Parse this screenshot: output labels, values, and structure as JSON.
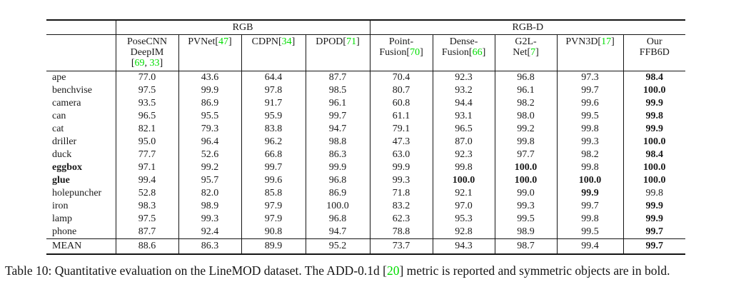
{
  "page": {
    "caption": "Table 10: Quantitative evaluation on the LineMOD dataset. The ADD-0.1d [|20|] metric is reported and symmetric objects are in bold."
  },
  "colors": {
    "citation_green": "#00DD00",
    "text": "#1a1a1a"
  },
  "table": {
    "groups": [
      {
        "label": "RGB",
        "span": 4
      },
      {
        "label": "RGB-D",
        "span": 5
      }
    ],
    "methods": [
      {
        "name": "posecnn-deepim",
        "lines": [
          "PoseCNN",
          "DeepIM",
          "[|69|, |33|]"
        ]
      },
      {
        "name": "pvnet",
        "lines": [
          "PVNet[|47|]"
        ]
      },
      {
        "name": "cdpn",
        "lines": [
          "CDPN[|34|]"
        ]
      },
      {
        "name": "dpod",
        "lines": [
          "DPOD[|71|]"
        ]
      },
      {
        "name": "pointfusion",
        "lines": [
          "Point-",
          "Fusion[|70|]"
        ]
      },
      {
        "name": "densefusion",
        "lines": [
          "Dense-",
          "Fusion[|66|]"
        ]
      },
      {
        "name": "g2l-net",
        "lines": [
          "G2L-",
          "Net[|7|]"
        ]
      },
      {
        "name": "pvn3d",
        "lines": [
          "PVN3D[|17|]"
        ]
      },
      {
        "name": "our-ffb6d",
        "lines": [
          "Our",
          "FFB6D"
        ]
      }
    ],
    "rows": [
      {
        "object": "ape",
        "bold_object": false,
        "values": [
          "77.0",
          "43.6",
          "64.4",
          "87.7",
          "70.4",
          "92.3",
          "96.8",
          "97.3",
          "98.4"
        ],
        "bold_cols": [
          8
        ]
      },
      {
        "object": "benchvise",
        "bold_object": false,
        "values": [
          "97.5",
          "99.9",
          "97.8",
          "98.5",
          "80.7",
          "93.2",
          "96.1",
          "99.7",
          "100.0"
        ],
        "bold_cols": [
          8
        ]
      },
      {
        "object": "camera",
        "bold_object": false,
        "values": [
          "93.5",
          "86.9",
          "91.7",
          "96.1",
          "60.8",
          "94.4",
          "98.2",
          "99.6",
          "99.9"
        ],
        "bold_cols": [
          8
        ]
      },
      {
        "object": "can",
        "bold_object": false,
        "values": [
          "96.5",
          "95.5",
          "95.9",
          "99.7",
          "61.1",
          "93.1",
          "98.0",
          "99.5",
          "99.8"
        ],
        "bold_cols": [
          8
        ]
      },
      {
        "object": "cat",
        "bold_object": false,
        "values": [
          "82.1",
          "79.3",
          "83.8",
          "94.7",
          "79.1",
          "96.5",
          "99.2",
          "99.8",
          "99.9"
        ],
        "bold_cols": [
          8
        ]
      },
      {
        "object": "driller",
        "bold_object": false,
        "values": [
          "95.0",
          "96.4",
          "96.2",
          "98.8",
          "47.3",
          "87.0",
          "99.8",
          "99.3",
          "100.0"
        ],
        "bold_cols": [
          8
        ]
      },
      {
        "object": "duck",
        "bold_object": false,
        "values": [
          "77.7",
          "52.6",
          "66.8",
          "86.3",
          "63.0",
          "92.3",
          "97.7",
          "98.2",
          "98.4"
        ],
        "bold_cols": [
          8
        ]
      },
      {
        "object": "eggbox",
        "bold_object": true,
        "values": [
          "97.1",
          "99.2",
          "99.7",
          "99.9",
          "99.9",
          "99.8",
          "100.0",
          "99.8",
          "100.0"
        ],
        "bold_cols": [
          6,
          8
        ]
      },
      {
        "object": "glue",
        "bold_object": true,
        "values": [
          "99.4",
          "95.7",
          "99.6",
          "96.8",
          "99.3",
          "100.0",
          "100.0",
          "100.0",
          "100.0"
        ],
        "bold_cols": [
          5,
          6,
          7,
          8
        ]
      },
      {
        "object": "holepuncher",
        "bold_object": false,
        "values": [
          "52.8",
          "82.0",
          "85.8",
          "86.9",
          "71.8",
          "92.1",
          "99.0",
          "99.9",
          "99.8"
        ],
        "bold_cols": [
          7
        ]
      },
      {
        "object": "iron",
        "bold_object": false,
        "values": [
          "98.3",
          "98.9",
          "97.9",
          "100.0",
          "83.2",
          "97.0",
          "99.3",
          "99.7",
          "99.9"
        ],
        "bold_cols": [
          8
        ]
      },
      {
        "object": "lamp",
        "bold_object": false,
        "values": [
          "97.5",
          "99.3",
          "97.9",
          "96.8",
          "62.3",
          "95.3",
          "99.5",
          "99.8",
          "99.9"
        ],
        "bold_cols": [
          8
        ]
      },
      {
        "object": "phone",
        "bold_object": false,
        "values": [
          "87.7",
          "92.4",
          "90.8",
          "94.7",
          "78.8",
          "92.8",
          "98.9",
          "99.5",
          "99.7"
        ],
        "bold_cols": [
          8
        ]
      }
    ],
    "mean_row": {
      "object": "MEAN",
      "bold_object": false,
      "values": [
        "88.6",
        "86.3",
        "89.9",
        "95.2",
        "73.7",
        "94.3",
        "98.7",
        "99.4",
        "99.7"
      ],
      "bold_cols": [
        8
      ]
    }
  }
}
